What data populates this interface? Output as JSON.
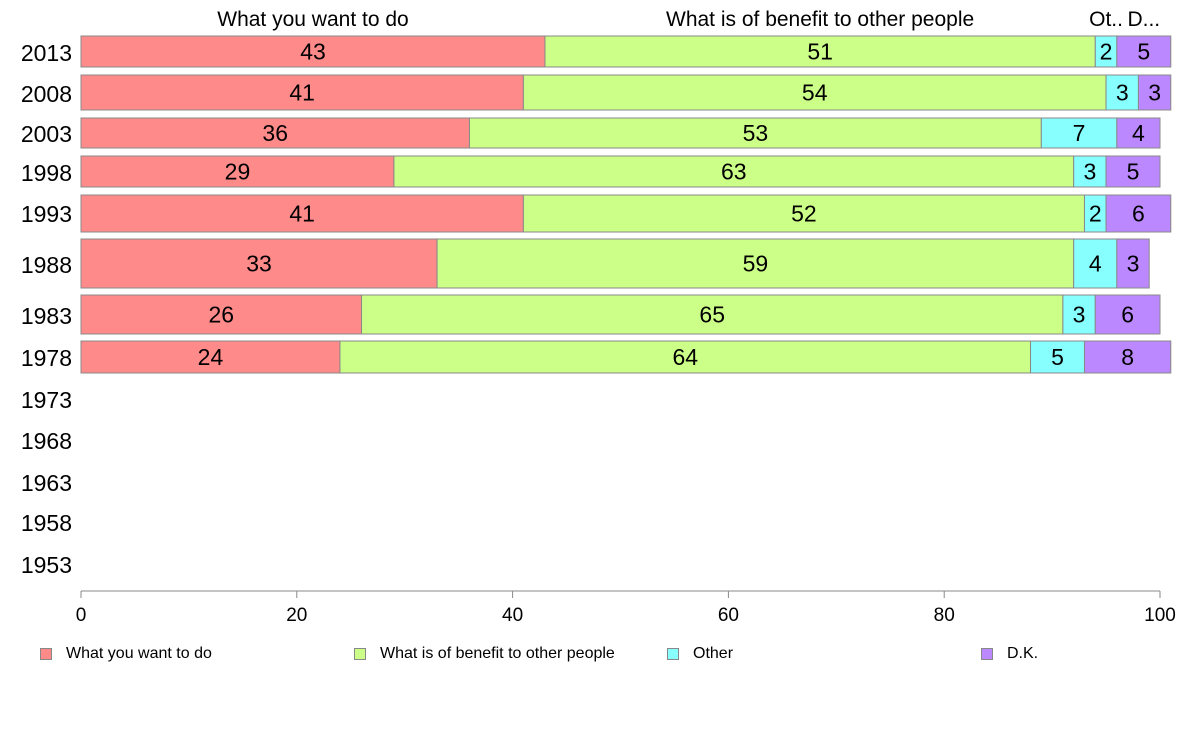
{
  "chart_data": {
    "type": "bar",
    "orientation": "horizontal",
    "stacked": true,
    "categories": [
      "2013",
      "2008",
      "2003",
      "1998",
      "1993",
      "1988",
      "1983",
      "1978",
      "1973",
      "1968",
      "1963",
      "1958",
      "1953"
    ],
    "series": [
      {
        "name": "What you want to do",
        "color": "#ff8a8a",
        "values": [
          43,
          41,
          36,
          29,
          41,
          33,
          26,
          24,
          null,
          null,
          null,
          null,
          null
        ]
      },
      {
        "name": "What is of benefit to other people",
        "color": "#ccff88",
        "values": [
          51,
          54,
          53,
          63,
          52,
          59,
          65,
          64,
          null,
          null,
          null,
          null,
          null
        ]
      },
      {
        "name": "Other",
        "color": "#88ffff",
        "values": [
          2,
          3,
          7,
          3,
          2,
          4,
          3,
          5,
          null,
          null,
          null,
          null,
          null
        ]
      },
      {
        "name": "D.K.",
        "color": "#bb88ff",
        "values": [
          5,
          3,
          4,
          5,
          6,
          3,
          6,
          8,
          null,
          null,
          null,
          null,
          null
        ]
      }
    ],
    "top_labels": [
      "What you want to do",
      "What is of benefit to other people",
      "Ot..",
      "D..."
    ],
    "x_ticks": [
      "0",
      "20",
      "40",
      "60",
      "80",
      "100"
    ],
    "xlim": [
      0,
      100
    ],
    "legend_position": "bottom",
    "grid": false
  }
}
